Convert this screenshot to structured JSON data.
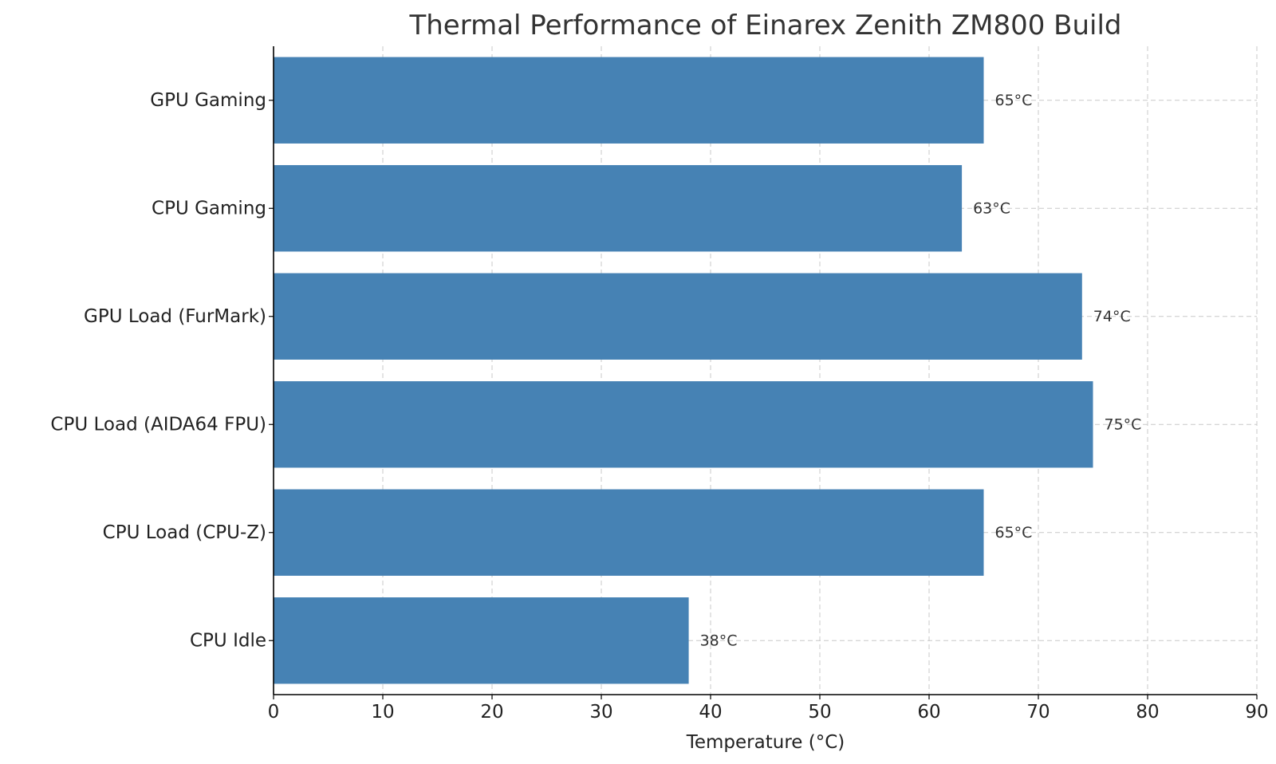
{
  "chart_data": {
    "type": "bar",
    "orientation": "horizontal",
    "title": "Thermal Performance of Einarex Zenith ZM800 Build",
    "xlabel": "Temperature (°C)",
    "ylabel": "",
    "xlim": [
      0,
      90
    ],
    "xticks": [
      0,
      10,
      20,
      30,
      40,
      50,
      60,
      70,
      80,
      90
    ],
    "grid": true,
    "categories": [
      "GPU Gaming",
      "CPU Gaming",
      "GPU Load (FurMark)",
      "CPU Load (AIDA64 FPU)",
      "CPU Load (CPU-Z)",
      "CPU Idle"
    ],
    "values": [
      65,
      63,
      74,
      75,
      65,
      38
    ],
    "data_labels": [
      "65°C",
      "63°C",
      "74°C",
      "75°C",
      "65°C",
      "38°C"
    ],
    "colors": {
      "bar": "#4682b4"
    }
  }
}
